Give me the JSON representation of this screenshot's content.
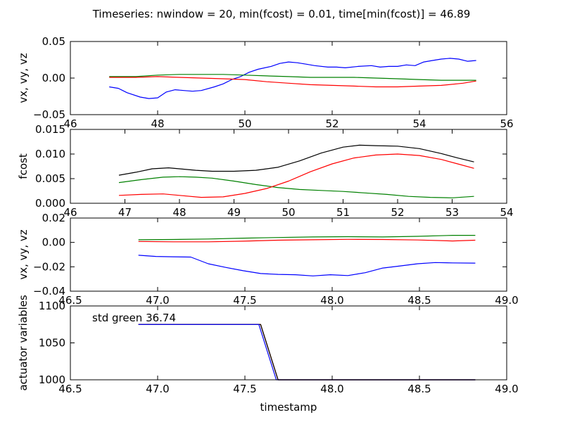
{
  "figure_title": "Timeseries: nwindow = 20, min(fcost) = 0.01, time[min(fcost)] = 46.89",
  "colors": {
    "blue": "#0000ff",
    "green": "#008000",
    "red": "#ff0000",
    "black": "#000000"
  },
  "chart_data": [
    {
      "type": "line",
      "ylabel": "vx, vy, vz",
      "xlabel": "",
      "xlim": [
        46,
        56
      ],
      "ylim": [
        -0.05,
        0.05
      ],
      "xticks": [
        46,
        48,
        50,
        52,
        54,
        56
      ],
      "xtick_labels": [
        "46",
        "48",
        "50",
        "52",
        "54",
        "56"
      ],
      "yticks": [
        -0.05,
        0.0,
        0.05
      ],
      "ytick_labels": [
        "−0.05",
        "0.00",
        "0.05"
      ],
      "series": [
        {
          "color": "blue",
          "x": [
            46.89,
            47.1,
            47.3,
            47.6,
            47.8,
            48.0,
            48.2,
            48.4,
            48.6,
            48.8,
            49.0,
            49.3,
            49.5,
            49.7,
            49.9,
            50.1,
            50.3,
            50.6,
            50.8,
            51.0,
            51.2,
            51.4,
            51.6,
            51.9,
            52.1,
            52.3,
            52.6,
            52.9,
            53.1,
            53.3,
            53.5,
            53.7,
            53.9,
            54.1,
            54.3,
            54.5,
            54.7,
            54.9,
            55.1,
            55.3
          ],
          "y": [
            -0.012,
            -0.014,
            -0.02,
            -0.026,
            -0.028,
            -0.027,
            -0.019,
            -0.016,
            -0.017,
            -0.018,
            -0.017,
            -0.012,
            -0.008,
            -0.002,
            0.002,
            0.008,
            0.012,
            0.016,
            0.02,
            0.022,
            0.021,
            0.019,
            0.017,
            0.015,
            0.015,
            0.014,
            0.016,
            0.017,
            0.015,
            0.016,
            0.016,
            0.018,
            0.017,
            0.022,
            0.024,
            0.026,
            0.027,
            0.026,
            0.023,
            0.024
          ]
        },
        {
          "color": "green",
          "x": [
            46.89,
            47.5,
            48.0,
            48.5,
            49.0,
            49.5,
            50.0,
            50.5,
            51.0,
            51.5,
            52.0,
            52.5,
            53.0,
            53.5,
            54.0,
            54.5,
            55.0,
            55.3
          ],
          "y": [
            0.002,
            0.002,
            0.004,
            0.005,
            0.005,
            0.005,
            0.004,
            0.003,
            0.002,
            0.001,
            0.001,
            0.001,
            0.0,
            -0.001,
            -0.002,
            -0.003,
            -0.003,
            -0.003
          ]
        },
        {
          "color": "red",
          "x": [
            46.89,
            47.5,
            48.0,
            48.5,
            49.0,
            49.5,
            50.0,
            50.5,
            51.0,
            51.5,
            52.0,
            52.5,
            53.0,
            53.5,
            54.0,
            54.5,
            55.0,
            55.3
          ],
          "y": [
            0.001,
            0.001,
            0.002,
            0.001,
            0.0,
            -0.001,
            -0.002,
            -0.005,
            -0.007,
            -0.009,
            -0.01,
            -0.011,
            -0.012,
            -0.012,
            -0.011,
            -0.01,
            -0.007,
            -0.004
          ]
        }
      ]
    },
    {
      "type": "line",
      "ylabel": "fcost",
      "xlabel": "",
      "xlim": [
        46,
        54
      ],
      "ylim": [
        0.0,
        0.015
      ],
      "xticks": [
        46,
        47,
        48,
        49,
        50,
        51,
        52,
        53,
        54
      ],
      "xtick_labels": [
        "46",
        "47",
        "48",
        "49",
        "50",
        "51",
        "52",
        "53",
        "54"
      ],
      "yticks": [
        0.0,
        0.005,
        0.01,
        0.015
      ],
      "ytick_labels": [
        "0.000",
        "0.005",
        "0.010",
        "0.015"
      ],
      "series": [
        {
          "color": "black",
          "x": [
            46.89,
            47.2,
            47.5,
            47.8,
            48.0,
            48.3,
            48.6,
            49.0,
            49.4,
            49.8,
            50.2,
            50.6,
            51.0,
            51.3,
            51.6,
            52.0,
            52.4,
            52.8,
            53.1,
            53.4
          ],
          "y": [
            0.0057,
            0.0063,
            0.007,
            0.0072,
            0.007,
            0.0067,
            0.0065,
            0.0065,
            0.0067,
            0.0073,
            0.0086,
            0.0102,
            0.0114,
            0.0118,
            0.0117,
            0.0116,
            0.0111,
            0.0101,
            0.0092,
            0.0084
          ]
        },
        {
          "color": "green",
          "x": [
            46.89,
            47.3,
            47.7,
            48.0,
            48.3,
            48.6,
            49.0,
            49.4,
            49.8,
            50.2,
            50.6,
            51.0,
            51.4,
            51.8,
            52.2,
            52.6,
            53.0,
            53.4
          ],
          "y": [
            0.0042,
            0.0048,
            0.0053,
            0.0054,
            0.0053,
            0.0051,
            0.0045,
            0.0038,
            0.0032,
            0.0028,
            0.0026,
            0.0024,
            0.0021,
            0.0018,
            0.0014,
            0.0012,
            0.0011,
            0.0014
          ]
        },
        {
          "color": "red",
          "x": [
            46.89,
            47.3,
            47.7,
            48.0,
            48.4,
            48.8,
            49.2,
            49.6,
            50.0,
            50.4,
            50.8,
            51.2,
            51.6,
            52.0,
            52.4,
            52.8,
            53.1,
            53.4
          ],
          "y": [
            0.0016,
            0.0018,
            0.0019,
            0.0016,
            0.0012,
            0.0013,
            0.002,
            0.003,
            0.0045,
            0.0064,
            0.008,
            0.0092,
            0.0098,
            0.01,
            0.0097,
            0.0089,
            0.008,
            0.0071
          ]
        }
      ]
    },
    {
      "type": "line",
      "ylabel": "vx, vy, vz",
      "xlabel": "",
      "xlim": [
        46.5,
        49.0
      ],
      "ylim": [
        -0.04,
        0.02
      ],
      "xticks": [
        46.5,
        47.0,
        47.5,
        48.0,
        48.5,
        49.0
      ],
      "xtick_labels": [
        "46.5",
        "47.0",
        "47.5",
        "48.0",
        "48.5",
        "49.0"
      ],
      "yticks": [
        -0.04,
        -0.02,
        0.0,
        0.02
      ],
      "ytick_labels": [
        "−0.04",
        "−0.02",
        "0.00",
        "0.02"
      ],
      "series": [
        {
          "color": "blue",
          "x": [
            46.89,
            46.99,
            47.09,
            47.19,
            47.29,
            47.39,
            47.49,
            47.59,
            47.69,
            47.79,
            47.89,
            47.99,
            48.09,
            48.19,
            48.29,
            48.39,
            48.49,
            48.59,
            48.69,
            48.82
          ],
          "y": [
            -0.0105,
            -0.0115,
            -0.0118,
            -0.012,
            -0.0175,
            -0.0205,
            -0.0232,
            -0.0255,
            -0.0262,
            -0.0265,
            -0.0275,
            -0.0265,
            -0.0272,
            -0.0248,
            -0.021,
            -0.0193,
            -0.0175,
            -0.0165,
            -0.0168,
            -0.017
          ]
        },
        {
          "color": "green",
          "x": [
            46.89,
            47.09,
            47.29,
            47.49,
            47.69,
            47.89,
            48.09,
            48.29,
            48.49,
            48.69,
            48.82
          ],
          "y": [
            0.0022,
            0.0024,
            0.0028,
            0.0035,
            0.004,
            0.0045,
            0.0047,
            0.0045,
            0.005,
            0.0058,
            0.0058
          ]
        },
        {
          "color": "red",
          "x": [
            46.89,
            47.09,
            47.29,
            47.49,
            47.69,
            47.89,
            48.09,
            48.29,
            48.49,
            48.69,
            48.82
          ],
          "y": [
            0.0008,
            0.0005,
            0.0005,
            0.001,
            0.0018,
            0.0022,
            0.0025,
            0.0024,
            0.002,
            0.0012,
            0.0018
          ]
        }
      ]
    },
    {
      "type": "line",
      "ylabel": "actuator variables",
      "xlabel": "timestamp",
      "xlim": [
        46.5,
        49.0
      ],
      "ylim": [
        1000,
        1100
      ],
      "xticks": [
        46.5,
        47.0,
        47.5,
        48.0,
        48.5,
        49.0
      ],
      "xtick_labels": [
        "46.5",
        "47.0",
        "47.5",
        "48.0",
        "48.5",
        "49.0"
      ],
      "yticks": [
        1000,
        1050,
        1100
      ],
      "ytick_labels": [
        "1000",
        "1050",
        "1100"
      ],
      "annotation": "std green 36.74",
      "series": [
        {
          "color": "green",
          "x": [
            46.89,
            47.59,
            47.69,
            48.82
          ],
          "y": [
            1075,
            1075,
            1000,
            1000
          ]
        },
        {
          "color": "red",
          "x": [
            46.89,
            47.59,
            47.69,
            48.82
          ],
          "y": [
            1075,
            1075,
            1000,
            1000
          ]
        },
        {
          "color": "black",
          "x": [
            46.89,
            47.59,
            47.69,
            48.82
          ],
          "y": [
            1075,
            1075,
            1000,
            1000
          ]
        },
        {
          "color": "blue",
          "x": [
            46.89,
            47.58,
            47.68,
            48.82
          ],
          "y": [
            1075,
            1075,
            1000,
            1000
          ]
        }
      ]
    }
  ]
}
